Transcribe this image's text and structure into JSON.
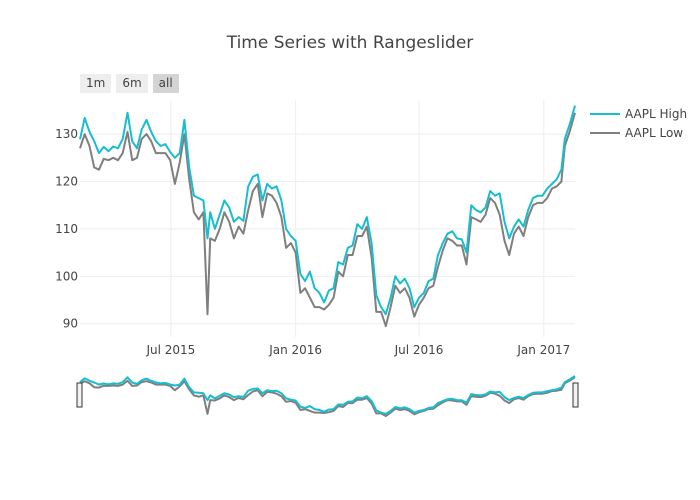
{
  "title": "Time Series with Rangeslider",
  "range_selector": {
    "buttons": [
      {
        "label": "1m",
        "active": false
      },
      {
        "label": "6m",
        "active": false
      },
      {
        "label": "all",
        "active": true
      }
    ]
  },
  "chart_data": {
    "type": "line",
    "title": "Time Series with Rangeslider",
    "xlabel": "",
    "ylabel": "",
    "x_range": [
      "2015-02-17",
      "2017-02-16"
    ],
    "ylim": [
      87.2,
      137.2
    ],
    "x_ticks": [
      {
        "date": "2015-07-01",
        "label": "Jul 2015"
      },
      {
        "date": "2016-01-01",
        "label": "Jan 2016"
      },
      {
        "date": "2016-07-01",
        "label": "Jul 2016"
      },
      {
        "date": "2017-01-01",
        "label": "Jan 2017"
      }
    ],
    "y_ticks": [
      90,
      100,
      110,
      120,
      130
    ],
    "grid": true,
    "legend_position": "top-right",
    "rangeslider": true,
    "series": [
      {
        "name": "AAPL High",
        "color": "#17BECF",
        "points": [
          [
            "2015-02-17",
            128.9
          ],
          [
            "2015-02-24",
            133.4
          ],
          [
            "2015-03-03",
            130.5
          ],
          [
            "2015-03-10",
            128.5
          ],
          [
            "2015-03-17",
            126.0
          ],
          [
            "2015-03-24",
            127.3
          ],
          [
            "2015-03-31",
            126.4
          ],
          [
            "2015-04-07",
            127.4
          ],
          [
            "2015-04-14",
            127.0
          ],
          [
            "2015-04-21",
            129.0
          ],
          [
            "2015-04-28",
            134.5
          ],
          [
            "2015-05-05",
            128.5
          ],
          [
            "2015-05-12",
            127.0
          ],
          [
            "2015-05-19",
            131.0
          ],
          [
            "2015-05-26",
            133.0
          ],
          [
            "2015-06-02",
            130.5
          ],
          [
            "2015-06-09",
            128.5
          ],
          [
            "2015-06-16",
            127.5
          ],
          [
            "2015-06-23",
            127.9
          ],
          [
            "2015-06-30",
            126.2
          ],
          [
            "2015-07-07",
            125.0
          ],
          [
            "2015-07-14",
            126.0
          ],
          [
            "2015-07-21",
            133.0
          ],
          [
            "2015-07-28",
            123.0
          ],
          [
            "2015-08-04",
            117.0
          ],
          [
            "2015-08-11",
            116.5
          ],
          [
            "2015-08-18",
            116.0
          ],
          [
            "2015-08-24",
            108.0
          ],
          [
            "2015-08-28",
            113.5
          ],
          [
            "2015-09-04",
            110.0
          ],
          [
            "2015-09-11",
            113.0
          ],
          [
            "2015-09-18",
            116.0
          ],
          [
            "2015-09-25",
            114.5
          ],
          [
            "2015-10-02",
            111.5
          ],
          [
            "2015-10-09",
            112.5
          ],
          [
            "2015-10-16",
            111.7
          ],
          [
            "2015-10-23",
            119.0
          ],
          [
            "2015-10-30",
            121.0
          ],
          [
            "2015-11-06",
            121.5
          ],
          [
            "2015-11-13",
            116.0
          ],
          [
            "2015-11-20",
            119.5
          ],
          [
            "2015-11-27",
            118.5
          ],
          [
            "2015-12-04",
            119.0
          ],
          [
            "2015-12-11",
            116.0
          ],
          [
            "2015-12-18",
            110.0
          ],
          [
            "2015-12-25",
            108.5
          ],
          [
            "2016-01-01",
            107.5
          ],
          [
            "2016-01-08",
            100.5
          ],
          [
            "2016-01-15",
            99.0
          ],
          [
            "2016-01-22",
            101.0
          ],
          [
            "2016-01-29",
            97.5
          ],
          [
            "2016-02-05",
            96.5
          ],
          [
            "2016-02-12",
            94.5
          ],
          [
            "2016-02-19",
            97.0
          ],
          [
            "2016-02-26",
            97.5
          ],
          [
            "2016-03-04",
            103.0
          ],
          [
            "2016-03-11",
            102.5
          ],
          [
            "2016-03-18",
            106.0
          ],
          [
            "2016-03-25",
            106.5
          ],
          [
            "2016-04-01",
            111.0
          ],
          [
            "2016-04-08",
            110.0
          ],
          [
            "2016-04-15",
            112.5
          ],
          [
            "2016-04-22",
            107.0
          ],
          [
            "2016-04-29",
            96.0
          ],
          [
            "2016-05-06",
            93.5
          ],
          [
            "2016-05-13",
            92.0
          ],
          [
            "2016-05-20",
            95.5
          ],
          [
            "2016-05-27",
            100.0
          ],
          [
            "2016-06-03",
            98.5
          ],
          [
            "2016-06-10",
            99.5
          ],
          [
            "2016-06-17",
            97.5
          ],
          [
            "2016-06-24",
            93.5
          ],
          [
            "2016-07-01",
            95.5
          ],
          [
            "2016-07-08",
            96.5
          ],
          [
            "2016-07-15",
            99.0
          ],
          [
            "2016-07-22",
            99.5
          ],
          [
            "2016-07-29",
            104.5
          ],
          [
            "2016-08-05",
            107.0
          ],
          [
            "2016-08-12",
            109.0
          ],
          [
            "2016-08-19",
            109.5
          ],
          [
            "2016-08-26",
            108.0
          ],
          [
            "2016-09-02",
            107.8
          ],
          [
            "2016-09-09",
            105.0
          ],
          [
            "2016-09-16",
            115.0
          ],
          [
            "2016-09-23",
            114.0
          ],
          [
            "2016-09-30",
            113.5
          ],
          [
            "2016-10-07",
            114.5
          ],
          [
            "2016-10-14",
            118.0
          ],
          [
            "2016-10-21",
            117.0
          ],
          [
            "2016-10-28",
            117.5
          ],
          [
            "2016-11-04",
            111.5
          ],
          [
            "2016-11-11",
            108.0
          ],
          [
            "2016-11-18",
            110.5
          ],
          [
            "2016-11-25",
            112.0
          ],
          [
            "2016-12-02",
            110.5
          ],
          [
            "2016-12-09",
            114.0
          ],
          [
            "2016-12-16",
            116.5
          ],
          [
            "2016-12-23",
            117.0
          ],
          [
            "2016-12-30",
            117.0
          ],
          [
            "2017-01-06",
            118.5
          ],
          [
            "2017-01-13",
            119.5
          ],
          [
            "2017-01-20",
            120.5
          ],
          [
            "2017-01-27",
            122.5
          ],
          [
            "2017-02-01",
            129.0
          ],
          [
            "2017-02-08",
            132.0
          ],
          [
            "2017-02-16",
            136.0
          ]
        ]
      },
      {
        "name": "AAPL Low",
        "color": "#7F7F7F",
        "points": [
          [
            "2015-02-17",
            127.0
          ],
          [
            "2015-02-24",
            130.0
          ],
          [
            "2015-03-03",
            127.5
          ],
          [
            "2015-03-10",
            123.0
          ],
          [
            "2015-03-17",
            122.5
          ],
          [
            "2015-03-24",
            124.8
          ],
          [
            "2015-03-31",
            124.5
          ],
          [
            "2015-04-07",
            125.0
          ],
          [
            "2015-04-14",
            124.5
          ],
          [
            "2015-04-21",
            126.0
          ],
          [
            "2015-04-28",
            130.5
          ],
          [
            "2015-05-05",
            124.5
          ],
          [
            "2015-05-12",
            125.0
          ],
          [
            "2015-05-19",
            129.0
          ],
          [
            "2015-05-26",
            130.0
          ],
          [
            "2015-06-02",
            128.5
          ],
          [
            "2015-06-09",
            126.0
          ],
          [
            "2015-06-16",
            126.0
          ],
          [
            "2015-06-23",
            126.0
          ],
          [
            "2015-06-30",
            124.5
          ],
          [
            "2015-07-07",
            119.5
          ],
          [
            "2015-07-14",
            124.0
          ],
          [
            "2015-07-21",
            130.0
          ],
          [
            "2015-07-28",
            120.5
          ],
          [
            "2015-08-04",
            113.5
          ],
          [
            "2015-08-11",
            112.0
          ],
          [
            "2015-08-18",
            113.5
          ],
          [
            "2015-08-24",
            92.0
          ],
          [
            "2015-08-28",
            108.0
          ],
          [
            "2015-09-04",
            107.5
          ],
          [
            "2015-09-11",
            110.0
          ],
          [
            "2015-09-18",
            113.5
          ],
          [
            "2015-09-25",
            111.5
          ],
          [
            "2015-10-02",
            108.0
          ],
          [
            "2015-10-09",
            110.5
          ],
          [
            "2015-10-16",
            109.0
          ],
          [
            "2015-10-23",
            114.0
          ],
          [
            "2015-10-30",
            118.0
          ],
          [
            "2015-11-06",
            119.5
          ],
          [
            "2015-11-13",
            112.5
          ],
          [
            "2015-11-20",
            117.5
          ],
          [
            "2015-11-27",
            117.0
          ],
          [
            "2015-12-04",
            115.5
          ],
          [
            "2015-12-11",
            112.5
          ],
          [
            "2015-12-18",
            106.0
          ],
          [
            "2015-12-25",
            107.0
          ],
          [
            "2016-01-01",
            105.0
          ],
          [
            "2016-01-08",
            96.5
          ],
          [
            "2016-01-15",
            97.5
          ],
          [
            "2016-01-22",
            95.5
          ],
          [
            "2016-01-29",
            93.5
          ],
          [
            "2016-02-05",
            93.5
          ],
          [
            "2016-02-12",
            93.0
          ],
          [
            "2016-02-19",
            94.0
          ],
          [
            "2016-02-26",
            95.5
          ],
          [
            "2016-03-04",
            101.0
          ],
          [
            "2016-03-11",
            100.0
          ],
          [
            "2016-03-18",
            104.5
          ],
          [
            "2016-03-25",
            104.5
          ],
          [
            "2016-04-01",
            108.5
          ],
          [
            "2016-04-08",
            108.5
          ],
          [
            "2016-04-15",
            110.5
          ],
          [
            "2016-04-22",
            104.0
          ],
          [
            "2016-04-29",
            92.5
          ],
          [
            "2016-05-06",
            92.5
          ],
          [
            "2016-05-13",
            89.5
          ],
          [
            "2016-05-20",
            93.5
          ],
          [
            "2016-05-27",
            98.0
          ],
          [
            "2016-06-03",
            96.5
          ],
          [
            "2016-06-10",
            97.5
          ],
          [
            "2016-06-17",
            95.5
          ],
          [
            "2016-06-24",
            91.5
          ],
          [
            "2016-07-01",
            94.0
          ],
          [
            "2016-07-08",
            95.5
          ],
          [
            "2016-07-15",
            97.5
          ],
          [
            "2016-07-22",
            98.0
          ],
          [
            "2016-07-29",
            102.0
          ],
          [
            "2016-08-05",
            105.5
          ],
          [
            "2016-08-12",
            108.0
          ],
          [
            "2016-08-19",
            107.5
          ],
          [
            "2016-08-26",
            106.5
          ],
          [
            "2016-09-02",
            106.5
          ],
          [
            "2016-09-09",
            102.5
          ],
          [
            "2016-09-16",
            112.5
          ],
          [
            "2016-09-23",
            112.0
          ],
          [
            "2016-09-30",
            111.5
          ],
          [
            "2016-10-07",
            113.0
          ],
          [
            "2016-10-14",
            116.5
          ],
          [
            "2016-10-21",
            115.5
          ],
          [
            "2016-10-28",
            113.0
          ],
          [
            "2016-11-04",
            107.5
          ],
          [
            "2016-11-11",
            104.5
          ],
          [
            "2016-11-18",
            109.0
          ],
          [
            "2016-11-25",
            110.5
          ],
          [
            "2016-12-02",
            108.5
          ],
          [
            "2016-12-09",
            112.5
          ],
          [
            "2016-12-16",
            115.0
          ],
          [
            "2016-12-23",
            115.5
          ],
          [
            "2016-12-30",
            115.5
          ],
          [
            "2017-01-06",
            116.5
          ],
          [
            "2017-01-13",
            118.5
          ],
          [
            "2017-01-20",
            119.0
          ],
          [
            "2017-01-27",
            120.0
          ],
          [
            "2017-02-01",
            127.5
          ],
          [
            "2017-02-08",
            130.5
          ],
          [
            "2017-02-16",
            134.5
          ]
        ]
      }
    ]
  }
}
